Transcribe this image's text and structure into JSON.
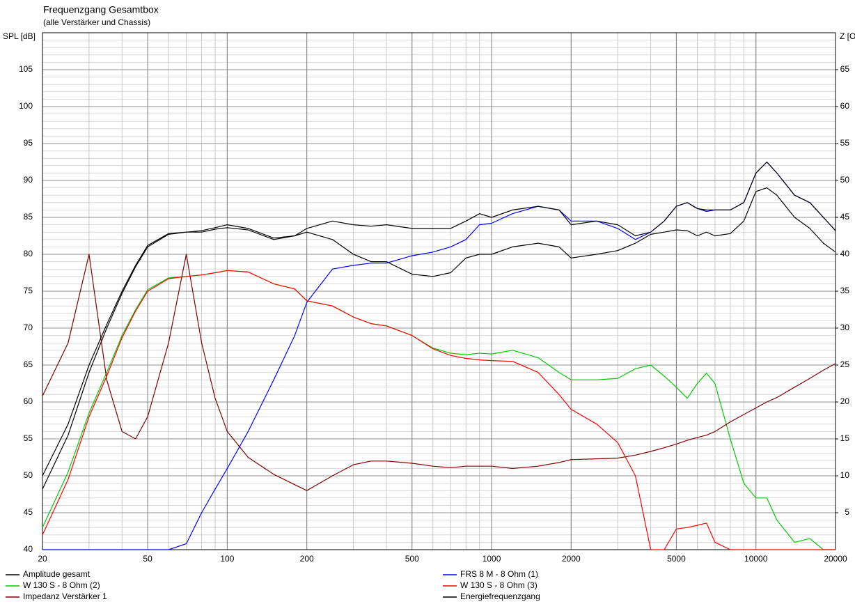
{
  "chart_data": {
    "type": "line",
    "title": "Frequenzgang Gesamtbox",
    "subtitle": "(alle Verstärker und Chassis)",
    "y_label": "SPL [dB]",
    "y2_label": "Z [O",
    "x_scale": "log",
    "grid": true,
    "minor_grid": true,
    "legend": "bottom",
    "xlim": [
      20,
      20000
    ],
    "xticks": [
      20,
      50,
      100,
      200,
      500,
      1000,
      2000,
      5000,
      10000,
      20000
    ],
    "ylim": [
      40,
      110
    ],
    "yticks": [
      40,
      45,
      50,
      55,
      60,
      65,
      70,
      75,
      80,
      85,
      90,
      95,
      100,
      105
    ],
    "y2lim": [
      0,
      70
    ],
    "y2ticks": [
      5,
      10,
      15,
      20,
      25,
      30,
      35,
      40,
      45,
      50,
      55,
      60,
      65
    ],
    "x": [
      20,
      25,
      30,
      35,
      40,
      45,
      50,
      60,
      70,
      80,
      90,
      100,
      120,
      150,
      180,
      200,
      250,
      300,
      350,
      400,
      500,
      600,
      700,
      800,
      900,
      1000,
      1200,
      1500,
      1800,
      2000,
      2500,
      3000,
      3500,
      4000,
      4500,
      5000,
      5500,
      6000,
      6500,
      7000,
      8000,
      9000,
      10000,
      11000,
      12000,
      14000,
      16000,
      18000,
      20000
    ],
    "series": [
      {
        "name": "Amplitude gesamt",
        "color": "#000000",
        "values": [
          48.2,
          55.5,
          64,
          70,
          74.7,
          78.3,
          81,
          82.7,
          83,
          83,
          83.4,
          83.6,
          83.3,
          82,
          82.5,
          83,
          82,
          80,
          79,
          79,
          77.3,
          77,
          77.5,
          79.5,
          80,
          80,
          81,
          81.5,
          81,
          79.5,
          80,
          80.5,
          81.5,
          82.7,
          83,
          83.3,
          83.2,
          82.5,
          83,
          82.5,
          82.8,
          84.5,
          88.5,
          89,
          88,
          85,
          83.5,
          81.5,
          80.3
        ]
      },
      {
        "name": "W 130 S - 8 Ohm (2)",
        "color": "#00cc00",
        "values": [
          43,
          50.5,
          58.5,
          64,
          69,
          72.5,
          75.2,
          76.8,
          77,
          77.2,
          77.5,
          77.8,
          77.6,
          76,
          75.3,
          73.7,
          73,
          71.5,
          70.6,
          70.3,
          69,
          67.3,
          66.6,
          66.4,
          66.6,
          66.5,
          67,
          66,
          64,
          63,
          63,
          63.2,
          64.5,
          65,
          63.5,
          62,
          60.5,
          62.5,
          63.9,
          62.5,
          55,
          49,
          47,
          47,
          44,
          41,
          41.5,
          40,
          40
        ]
      },
      {
        "name": "Impedanz Verstärker 1",
        "color": "#800000",
        "axis": "y2",
        "values": [
          20.8,
          28,
          40,
          23,
          16,
          15,
          18,
          28,
          40,
          28,
          20.5,
          16,
          12.5,
          10.2,
          8.8,
          8,
          10,
          11.5,
          12,
          12,
          11.7,
          11.3,
          11.1,
          11.3,
          11.3,
          11.3,
          11,
          11.3,
          11.8,
          12.2,
          12.3,
          12.4,
          12.8,
          13.3,
          13.8,
          14.3,
          14.8,
          15.2,
          15.5,
          16,
          17.3,
          18.3,
          19.2,
          20,
          20.6,
          22,
          23.2,
          24.3,
          25.2
        ]
      },
      {
        "name": "FRS 8 M - 8 Ohm (1)",
        "color": "#0000ff",
        "values": [
          40,
          40,
          40,
          40,
          40,
          40,
          40,
          40,
          40.8,
          45,
          48.2,
          51,
          56,
          63,
          69,
          73.5,
          78,
          78.5,
          78.8,
          78.8,
          79.8,
          80.3,
          81,
          82,
          84,
          84.2,
          85.5,
          86.5,
          86,
          84.5,
          84.5,
          83.5,
          82,
          83,
          84.5,
          86.5,
          87,
          86.2,
          85.8,
          86,
          86,
          87,
          91,
          92.5,
          91,
          88,
          87,
          85,
          83.2
        ]
      },
      {
        "name": "W 130 S - 8 Ohm (3)",
        "color": "#ff0000",
        "values": [
          42,
          49.5,
          58,
          63.5,
          68.7,
          72.3,
          75,
          76.7,
          77,
          77.2,
          77.5,
          77.8,
          77.6,
          76,
          75.3,
          73.7,
          73,
          71.5,
          70.6,
          70.3,
          69,
          67.2,
          66.3,
          65.9,
          65.7,
          65.6,
          65.5,
          64,
          61,
          59,
          57,
          54.5,
          50,
          40,
          40,
          42.8,
          43,
          43.3,
          43.6,
          41,
          40,
          40,
          40,
          40,
          40,
          40,
          40,
          40,
          40
        ]
      },
      {
        "name": "Energiefrequenzgang",
        "color": "#000000",
        "values": [
          50,
          57,
          65,
          70.5,
          75,
          78.5,
          81.2,
          82.8,
          83,
          83.2,
          83.6,
          84,
          83.5,
          82.2,
          82.5,
          83.5,
          84.5,
          84,
          83.8,
          84,
          83.5,
          83.5,
          83.5,
          84.5,
          85.5,
          85,
          86,
          86.5,
          86,
          84,
          84.5,
          84,
          82.5,
          83,
          84.5,
          86.5,
          87,
          86.2,
          86,
          86,
          86,
          87,
          91,
          92.5,
          91,
          88,
          87,
          85,
          83.2
        ]
      }
    ]
  }
}
